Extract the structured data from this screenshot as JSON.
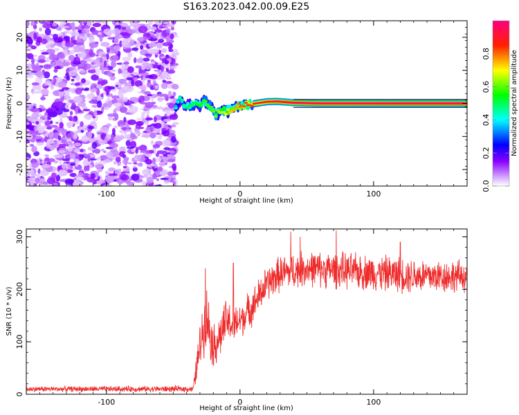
{
  "title": "S163.2023.042.00.09.E25",
  "chart_data": [
    {
      "type": "heatmap",
      "xlabel": "Height of straight line (km)",
      "ylabel": "Frequency (Hz)",
      "xlim": [
        -160,
        170
      ],
      "ylim": [
        -25,
        25
      ],
      "x_ticks": [
        -100,
        0,
        100
      ],
      "y_ticks": [
        -20,
        -10,
        0,
        10,
        20
      ],
      "colorbar": {
        "label": "Normalized spectral amplitude",
        "range": [
          0,
          1
        ],
        "ticks": [
          "0.0",
          "0.2",
          "0.4",
          "0.6",
          "0.8"
        ],
        "colormap": "gist_rainbow_r",
        "low_color": "#ffffff"
      },
      "noise_region": {
        "x_range": [
          -160,
          -48
        ],
        "y_range": [
          -25,
          25
        ],
        "amplitude": [
          0.0,
          0.3
        ]
      },
      "signal_track": [
        {
          "x": -48,
          "y": -1.5
        },
        {
          "x": -45,
          "y": 1.0
        },
        {
          "x": -42,
          "y": -0.5
        },
        {
          "x": -38,
          "y": -0.8
        },
        {
          "x": -34,
          "y": 0.0
        },
        {
          "x": -30,
          "y": -0.5
        },
        {
          "x": -26,
          "y": 0.8
        },
        {
          "x": -22,
          "y": -1.0
        },
        {
          "x": -18,
          "y": -3.5
        },
        {
          "x": -14,
          "y": -2.0
        },
        {
          "x": -10,
          "y": -2.5
        },
        {
          "x": -6,
          "y": -1.5
        },
        {
          "x": -2,
          "y": -1.0
        },
        {
          "x": 5,
          "y": -0.5
        },
        {
          "x": 12,
          "y": 0.0
        },
        {
          "x": 20,
          "y": 0.5
        },
        {
          "x": 28,
          "y": 0.6
        },
        {
          "x": 40,
          "y": 0.2
        },
        {
          "x": 60,
          "y": 0.0
        },
        {
          "x": 100,
          "y": 0.0
        },
        {
          "x": 170,
          "y": 0.0
        }
      ],
      "signal_amplitude": [
        {
          "x": -48,
          "a": 0.45
        },
        {
          "x": -40,
          "a": 0.5
        },
        {
          "x": -30,
          "a": 0.55
        },
        {
          "x": -20,
          "a": 0.6
        },
        {
          "x": -10,
          "a": 0.7
        },
        {
          "x": 0,
          "a": 0.8
        },
        {
          "x": 20,
          "a": 0.9
        },
        {
          "x": 40,
          "a": 0.95
        },
        {
          "x": 170,
          "a": 0.97
        }
      ]
    },
    {
      "type": "line",
      "xlabel": "Height of straight line (km)",
      "ylabel": "SNR (10 * v/v)",
      "xlim": [
        -160,
        170
      ],
      "ylim": [
        0,
        315
      ],
      "x_ticks": [
        -100,
        0,
        100
      ],
      "y_ticks": [
        0,
        100,
        200,
        300
      ],
      "color": "#ee2c2c",
      "envelope": [
        {
          "x": -160,
          "mean": 10,
          "spread": 6
        },
        {
          "x": -35,
          "mean": 10,
          "spread": 7
        },
        {
          "x": -32,
          "mean": 60,
          "spread": 40
        },
        {
          "x": -28,
          "mean": 120,
          "spread": 60
        },
        {
          "x": -25,
          "mean": 150,
          "spread": 70
        },
        {
          "x": -20,
          "mean": 90,
          "spread": 50
        },
        {
          "x": -15,
          "mean": 110,
          "spread": 50
        },
        {
          "x": -10,
          "mean": 140,
          "spread": 50
        },
        {
          "x": -5,
          "mean": 130,
          "spread": 45
        },
        {
          "x": 0,
          "mean": 140,
          "spread": 40
        },
        {
          "x": 10,
          "mean": 170,
          "spread": 40
        },
        {
          "x": 20,
          "mean": 210,
          "spread": 40
        },
        {
          "x": 30,
          "mean": 230,
          "spread": 40
        },
        {
          "x": 50,
          "mean": 240,
          "spread": 40
        },
        {
          "x": 80,
          "mean": 235,
          "spread": 40
        },
        {
          "x": 110,
          "mean": 230,
          "spread": 40
        },
        {
          "x": 140,
          "mean": 225,
          "spread": 40
        },
        {
          "x": 170,
          "mean": 225,
          "spread": 35
        }
      ],
      "notable_peaks": [
        {
          "x": -26,
          "y": 240
        },
        {
          "x": -5,
          "y": 250
        },
        {
          "x": 38,
          "y": 310
        },
        {
          "x": 72,
          "y": 312
        },
        {
          "x": 45,
          "y": 300
        },
        {
          "x": 120,
          "y": 290
        }
      ]
    }
  ]
}
